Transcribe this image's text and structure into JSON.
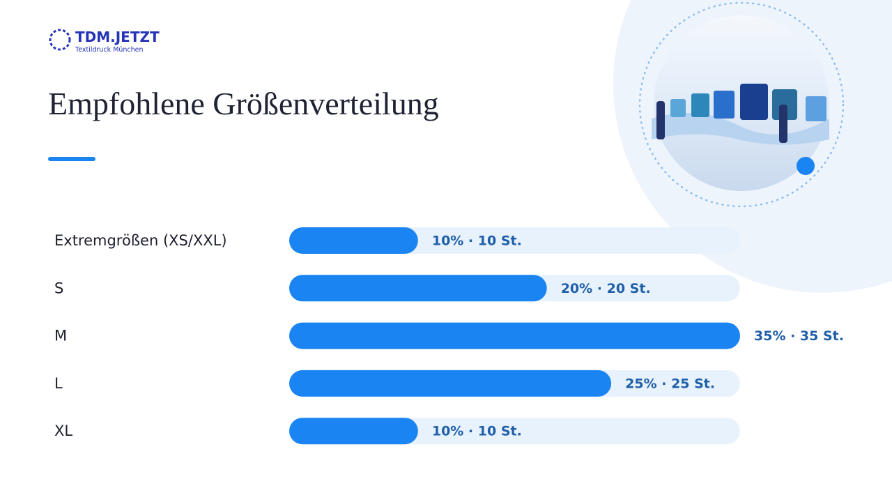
{
  "brand": {
    "name": "TDM.JETZT",
    "tagline": "Textildruck München"
  },
  "chart_data": {
    "type": "bar",
    "orientation": "horizontal",
    "title": "Empfohlene Größenverteilung",
    "categories": [
      "Extremgrößen (XS/XXL)",
      "S",
      "M",
      "L",
      "XL"
    ],
    "values": [
      10,
      20,
      35,
      25,
      10
    ],
    "value_labels": [
      "10% · 10 St.",
      "20% · 20 St.",
      "35% · 35 St.",
      "25% · 25 St.",
      "10% · 10 St."
    ],
    "color": "#1a84f2",
    "xlim": [
      0,
      35
    ]
  }
}
